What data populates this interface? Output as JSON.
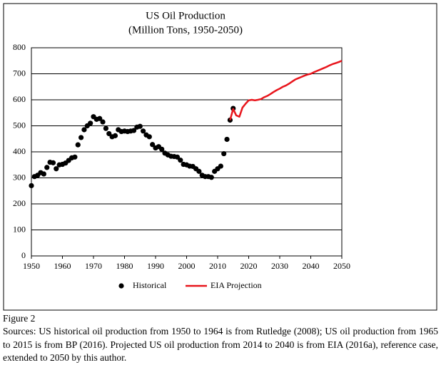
{
  "chart_data": {
    "type": "line",
    "title": "US Oil Production",
    "subtitle": "(Million Tons, 1950-2050)",
    "xlim": [
      1950,
      2050
    ],
    "xticks": [
      1950,
      1960,
      1970,
      1980,
      1990,
      2000,
      2010,
      2020,
      2030,
      2040,
      2050
    ],
    "ylim": [
      0,
      800
    ],
    "yticks": [
      0,
      100,
      200,
      300,
      400,
      500,
      600,
      700,
      800
    ],
    "grid": true,
    "legend": "bottom",
    "series": [
      {
        "name": "Historical",
        "color": "#000000",
        "type": "scatter",
        "x": [
          1950,
          1951,
          1952,
          1953,
          1954,
          1955,
          1956,
          1957,
          1958,
          1959,
          1960,
          1961,
          1962,
          1963,
          1964,
          1965,
          1966,
          1967,
          1968,
          1969,
          1970,
          1971,
          1972,
          1973,
          1974,
          1975,
          1976,
          1977,
          1978,
          1979,
          1980,
          1981,
          1982,
          1983,
          1984,
          1985,
          1986,
          1987,
          1988,
          1989,
          1990,
          1991,
          1992,
          1993,
          1994,
          1995,
          1996,
          1997,
          1998,
          1999,
          2000,
          2001,
          2002,
          2003,
          2004,
          2005,
          2006,
          2007,
          2008,
          2009,
          2010,
          2011,
          2012,
          2013,
          2014,
          2015
        ],
        "values": [
          270,
          305,
          310,
          320,
          315,
          340,
          360,
          358,
          335,
          350,
          352,
          357,
          367,
          377,
          380,
          427,
          455,
          485,
          500,
          510,
          535,
          525,
          528,
          515,
          490,
          470,
          458,
          462,
          485,
          478,
          480,
          478,
          480,
          482,
          495,
          498,
          480,
          465,
          458,
          428,
          415,
          420,
          410,
          395,
          388,
          383,
          382,
          380,
          368,
          352,
          350,
          345,
          344,
          335,
          325,
          310,
          305,
          305,
          302,
          325,
          335,
          345,
          393,
          448,
          522,
          567
        ]
      },
      {
        "name": "EIA Projection",
        "color": "#e8151c",
        "type": "line",
        "x": [
          2014,
          2015,
          2016,
          2017,
          2018,
          2019,
          2020,
          2021,
          2022,
          2023,
          2024,
          2025,
          2026,
          2027,
          2028,
          2029,
          2030,
          2031,
          2032,
          2033,
          2034,
          2035,
          2036,
          2037,
          2038,
          2039,
          2040,
          2041,
          2042,
          2043,
          2044,
          2045,
          2046,
          2047,
          2048,
          2049,
          2050
        ],
        "values": [
          522,
          565,
          540,
          535,
          570,
          585,
          598,
          600,
          598,
          600,
          603,
          610,
          615,
          622,
          630,
          637,
          643,
          650,
          655,
          662,
          670,
          678,
          683,
          688,
          693,
          697,
          700,
          706,
          711,
          716,
          721,
          726,
          732,
          737,
          741,
          745,
          750
        ]
      }
    ]
  },
  "caption": {
    "label": "Figure 2",
    "text": "Sources: US historical oil production from 1950 to 1964 is from Rutledge (2008); US oil production from 1965 to 2015 is from BP (2016).  Projected US oil production from 2014 to 2040 is from EIA (2016a), reference case, extended to 2050 by this author."
  }
}
